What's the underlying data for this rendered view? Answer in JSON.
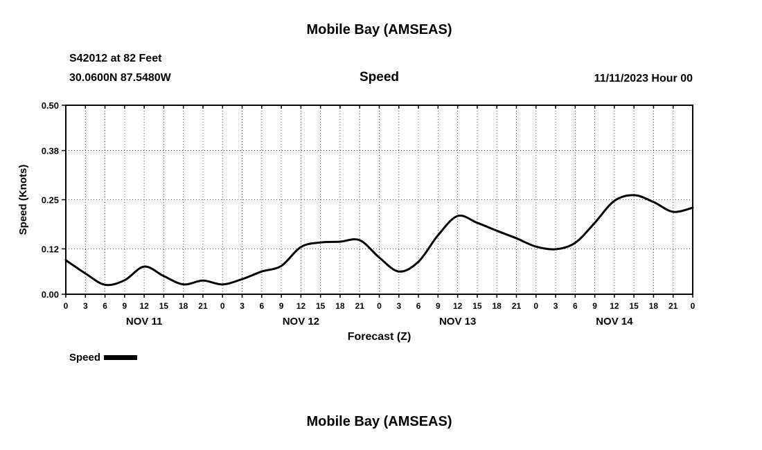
{
  "page": {
    "title": "Mobile Bay (AMSEAS)",
    "subtitle": "Speed",
    "station_line1": "S42012 at 82 Feet",
    "station_line2": "30.0600N  87.5480W",
    "datetime_label": "11/11/2023 Hour 00",
    "legend_label": "Speed",
    "bottom_title": "Mobile Bay (AMSEAS)"
  },
  "chart_data": {
    "type": "line",
    "title": "Mobile Bay (AMSEAS)",
    "subtitle": "Speed",
    "xlabel": "Forecast (Z)",
    "ylabel": "Speed (Knots)",
    "ylim": [
      0,
      0.5
    ],
    "ytick_values": [
      0,
      0.12,
      0.25,
      0.38,
      0.5
    ],
    "ytick_labels": [
      "0.00",
      "0.12",
      "0.25",
      "0.38",
      "0.50"
    ],
    "x_hours": [
      0,
      3,
      6,
      9,
      12,
      15,
      18,
      21,
      24,
      27,
      30,
      33,
      36,
      39,
      42,
      45,
      48,
      51,
      54,
      57,
      60,
      63,
      66,
      69,
      72,
      75,
      78,
      81,
      84,
      87,
      90,
      93,
      96
    ],
    "xtick_labels": [
      "0",
      "3",
      "6",
      "9",
      "12",
      "15",
      "18",
      "21",
      "0",
      "3",
      "6",
      "9",
      "12",
      "15",
      "18",
      "21",
      "0",
      "3",
      "6",
      "9",
      "12",
      "15",
      "18",
      "21",
      "0",
      "3",
      "6",
      "9",
      "12",
      "15",
      "18",
      "21",
      "0"
    ],
    "day_labels": [
      {
        "label": "NOV 11",
        "hour": 12
      },
      {
        "label": "NOV 12",
        "hour": 36
      },
      {
        "label": "NOV 13",
        "hour": 60
      },
      {
        "label": "NOV 14",
        "hour": 84
      }
    ],
    "series": [
      {
        "name": "Speed",
        "color": "#000000",
        "values": [
          0.09,
          0.055,
          0.025,
          0.037,
          0.073,
          0.048,
          0.026,
          0.036,
          0.026,
          0.04,
          0.06,
          0.075,
          0.125,
          0.137,
          0.139,
          0.143,
          0.097,
          0.06,
          0.086,
          0.156,
          0.207,
          0.189,
          0.168,
          0.148,
          0.126,
          0.119,
          0.136,
          0.189,
          0.247,
          0.262,
          0.244,
          0.218,
          0.229
        ]
      }
    ],
    "grid": "dotted",
    "legend_position": "bottom-left"
  }
}
